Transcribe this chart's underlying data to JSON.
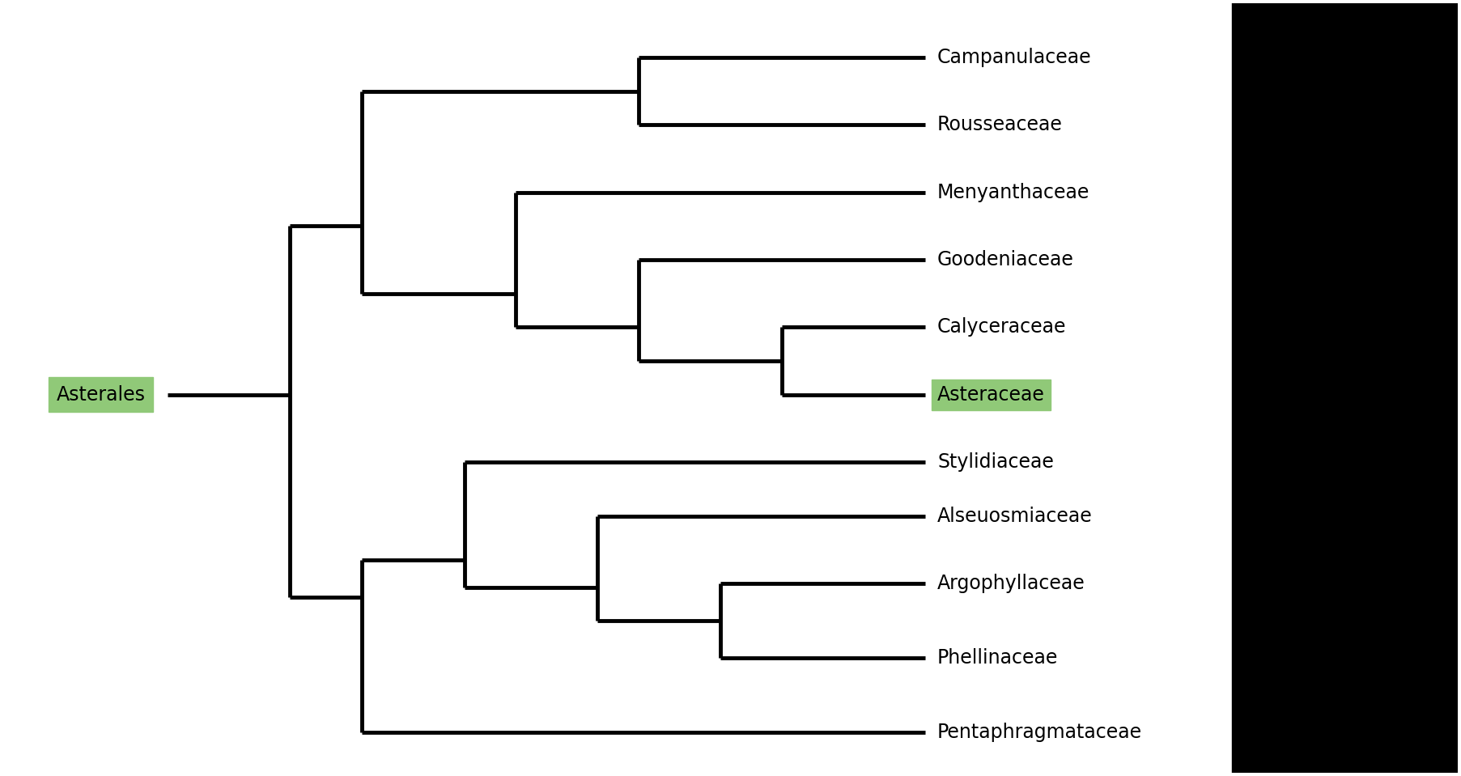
{
  "background_color": "#ffffff",
  "right_panel_color": "#000000",
  "line_color": "#000000",
  "line_width": 3.5,
  "taxa": [
    "Campanulaceae",
    "Rousseaceae",
    "Menyanthaceae",
    "Goodeniaceae",
    "Calyceraceae",
    "Asteraceae",
    "Stylidiaceae",
    "Alseuosmiaceae",
    "Argophyllaceae",
    "Phellinaceae",
    "Pentaphragmataceae"
  ],
  "y_vals": {
    "Campanulaceae": 10.0,
    "Rousseaceae": 9.0,
    "Menyanthaceae": 8.0,
    "Goodeniaceae": 7.0,
    "Calyceraceae": 6.0,
    "Asteraceae": 5.0,
    "Stylidiaceae": 4.0,
    "Alseuosmiaceae": 3.2,
    "Argophyllaceae": 2.2,
    "Phellinaceae": 1.1,
    "Pentaphragmataceae": 0.0
  },
  "highlighted_taxon": "Asteraceae",
  "highlighted_bg": "#90c978",
  "highlighted_text": "#000000",
  "root_label": "Asterales",
  "root_label_bg": "#90c978",
  "figsize": [
    18.05,
    9.59
  ],
  "dpi": 100,
  "font_size": 17,
  "font_weight": "normal"
}
